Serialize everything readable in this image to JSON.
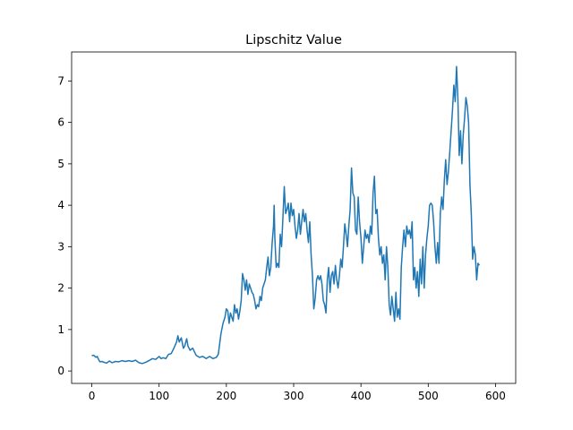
{
  "chart_data": {
    "type": "line",
    "title": "Lipschitz Value",
    "xlabel": "",
    "ylabel": "",
    "xlim": [
      -30,
      630
    ],
    "ylim": [
      -0.3,
      7.7
    ],
    "xticks": [
      0,
      100,
      200,
      300,
      400,
      500,
      600
    ],
    "yticks": [
      0,
      1,
      2,
      3,
      4,
      5,
      6,
      7
    ],
    "grid": false,
    "line_color": "#1f77b4",
    "series": [
      {
        "points": [
          [
            0,
            0.37
          ],
          [
            3,
            0.38
          ],
          [
            6,
            0.33
          ],
          [
            8,
            0.35
          ],
          [
            10,
            0.28
          ],
          [
            12,
            0.22
          ],
          [
            15,
            0.23
          ],
          [
            18,
            0.21
          ],
          [
            22,
            0.19
          ],
          [
            26,
            0.24
          ],
          [
            30,
            0.2
          ],
          [
            35,
            0.23
          ],
          [
            40,
            0.22
          ],
          [
            45,
            0.25
          ],
          [
            50,
            0.23
          ],
          [
            55,
            0.25
          ],
          [
            60,
            0.23
          ],
          [
            65,
            0.26
          ],
          [
            70,
            0.2
          ],
          [
            75,
            0.18
          ],
          [
            80,
            0.21
          ],
          [
            85,
            0.25
          ],
          [
            90,
            0.3
          ],
          [
            95,
            0.28
          ],
          [
            100,
            0.35
          ],
          [
            103,
            0.3
          ],
          [
            106,
            0.32
          ],
          [
            110,
            0.3
          ],
          [
            114,
            0.4
          ],
          [
            118,
            0.42
          ],
          [
            122,
            0.55
          ],
          [
            126,
            0.7
          ],
          [
            128,
            0.85
          ],
          [
            130,
            0.7
          ],
          [
            133,
            0.8
          ],
          [
            136,
            0.55
          ],
          [
            138,
            0.6
          ],
          [
            141,
            0.78
          ],
          [
            143,
            0.6
          ],
          [
            146,
            0.5
          ],
          [
            150,
            0.55
          ],
          [
            155,
            0.38
          ],
          [
            160,
            0.33
          ],
          [
            165,
            0.35
          ],
          [
            170,
            0.3
          ],
          [
            175,
            0.35
          ],
          [
            180,
            0.3
          ],
          [
            185,
            0.33
          ],
          [
            188,
            0.4
          ],
          [
            190,
            0.65
          ],
          [
            192,
            0.9
          ],
          [
            195,
            1.15
          ],
          [
            198,
            1.3
          ],
          [
            200,
            1.5
          ],
          [
            202,
            1.45
          ],
          [
            204,
            1.15
          ],
          [
            206,
            1.4
          ],
          [
            208,
            1.3
          ],
          [
            210,
            1.2
          ],
          [
            212,
            1.6
          ],
          [
            214,
            1.4
          ],
          [
            216,
            1.5
          ],
          [
            218,
            1.25
          ],
          [
            220,
            1.45
          ],
          [
            222,
            1.7
          ],
          [
            224,
            2.35
          ],
          [
            226,
            2.2
          ],
          [
            228,
            1.95
          ],
          [
            230,
            2.2
          ],
          [
            232,
            1.85
          ],
          [
            234,
            2.1
          ],
          [
            236,
            2.0
          ],
          [
            238,
            1.9
          ],
          [
            240,
            1.85
          ],
          [
            242,
            1.7
          ],
          [
            244,
            1.5
          ],
          [
            246,
            1.6
          ],
          [
            248,
            1.55
          ],
          [
            250,
            1.8
          ],
          [
            252,
            1.7
          ],
          [
            254,
            2.0
          ],
          [
            256,
            2.1
          ],
          [
            258,
            2.2
          ],
          [
            260,
            2.5
          ],
          [
            262,
            2.75
          ],
          [
            264,
            2.3
          ],
          [
            266,
            2.5
          ],
          [
            268,
            3.1
          ],
          [
            270,
            3.5
          ],
          [
            271,
            4.0
          ],
          [
            272,
            3.2
          ],
          [
            274,
            2.5
          ],
          [
            276,
            2.6
          ],
          [
            278,
            2.5
          ],
          [
            280,
            3.3
          ],
          [
            282,
            3.0
          ],
          [
            284,
            3.7
          ],
          [
            286,
            4.45
          ],
          [
            288,
            3.8
          ],
          [
            290,
            3.9
          ],
          [
            292,
            4.05
          ],
          [
            294,
            3.6
          ],
          [
            296,
            4.05
          ],
          [
            298,
            3.75
          ],
          [
            300,
            3.9
          ],
          [
            302,
            3.5
          ],
          [
            304,
            3.2
          ],
          [
            306,
            3.4
          ],
          [
            308,
            3.8
          ],
          [
            310,
            3.3
          ],
          [
            312,
            3.6
          ],
          [
            314,
            3.9
          ],
          [
            316,
            3.6
          ],
          [
            318,
            3.8
          ],
          [
            320,
            3.4
          ],
          [
            322,
            3.1
          ],
          [
            324,
            3.6
          ],
          [
            326,
            2.8
          ],
          [
            328,
            2.3
          ],
          [
            330,
            1.5
          ],
          [
            332,
            1.75
          ],
          [
            334,
            2.2
          ],
          [
            336,
            2.3
          ],
          [
            338,
            2.2
          ],
          [
            340,
            2.3
          ],
          [
            342,
            2.1
          ],
          [
            344,
            1.7
          ],
          [
            346,
            1.6
          ],
          [
            348,
            1.4
          ],
          [
            350,
            2.2
          ],
          [
            352,
            2.5
          ],
          [
            354,
            1.9
          ],
          [
            356,
            2.3
          ],
          [
            358,
            2.4
          ],
          [
            360,
            2.1
          ],
          [
            362,
            2.55
          ],
          [
            364,
            2.2
          ],
          [
            366,
            2.0
          ],
          [
            368,
            2.3
          ],
          [
            370,
            2.7
          ],
          [
            372,
            2.5
          ],
          [
            374,
            3.0
          ],
          [
            376,
            3.55
          ],
          [
            378,
            3.3
          ],
          [
            380,
            3.0
          ],
          [
            382,
            3.5
          ],
          [
            384,
            3.9
          ],
          [
            386,
            4.9
          ],
          [
            388,
            4.3
          ],
          [
            390,
            4.2
          ],
          [
            392,
            3.4
          ],
          [
            394,
            3.3
          ],
          [
            396,
            4.2
          ],
          [
            398,
            3.6
          ],
          [
            400,
            3.2
          ],
          [
            402,
            2.6
          ],
          [
            404,
            3.0
          ],
          [
            406,
            3.4
          ],
          [
            408,
            3.2
          ],
          [
            410,
            3.3
          ],
          [
            412,
            3.1
          ],
          [
            414,
            3.5
          ],
          [
            416,
            3.3
          ],
          [
            418,
            4.3
          ],
          [
            420,
            4.7
          ],
          [
            422,
            3.8
          ],
          [
            424,
            3.9
          ],
          [
            426,
            3.2
          ],
          [
            428,
            2.8
          ],
          [
            430,
            3.0
          ],
          [
            432,
            2.6
          ],
          [
            434,
            2.8
          ],
          [
            436,
            2.2
          ],
          [
            438,
            3.0
          ],
          [
            440,
            2.5
          ],
          [
            442,
            1.6
          ],
          [
            444,
            1.35
          ],
          [
            446,
            1.8
          ],
          [
            448,
            1.5
          ],
          [
            450,
            1.2
          ],
          [
            452,
            1.9
          ],
          [
            454,
            1.3
          ],
          [
            456,
            1.5
          ],
          [
            458,
            1.25
          ],
          [
            460,
            2.5
          ],
          [
            462,
            3.0
          ],
          [
            464,
            3.4
          ],
          [
            466,
            3.0
          ],
          [
            468,
            3.5
          ],
          [
            470,
            3.3
          ],
          [
            472,
            3.4
          ],
          [
            474,
            3.2
          ],
          [
            476,
            3.6
          ],
          [
            478,
            2.2
          ],
          [
            480,
            2.5
          ],
          [
            482,
            2.0
          ],
          [
            484,
            2.4
          ],
          [
            486,
            1.8
          ],
          [
            488,
            2.7
          ],
          [
            490,
            2.1
          ],
          [
            492,
            3.0
          ],
          [
            494,
            2.0
          ],
          [
            496,
            2.8
          ],
          [
            498,
            3.2
          ],
          [
            500,
            3.5
          ],
          [
            502,
            4.0
          ],
          [
            504,
            4.05
          ],
          [
            506,
            4.0
          ],
          [
            508,
            3.6
          ],
          [
            510,
            3.0
          ],
          [
            512,
            2.6
          ],
          [
            514,
            3.1
          ],
          [
            516,
            2.6
          ],
          [
            518,
            3.8
          ],
          [
            520,
            4.2
          ],
          [
            522,
            3.9
          ],
          [
            524,
            4.6
          ],
          [
            526,
            5.1
          ],
          [
            528,
            4.5
          ],
          [
            530,
            4.8
          ],
          [
            532,
            5.3
          ],
          [
            534,
            5.8
          ],
          [
            536,
            6.3
          ],
          [
            538,
            6.9
          ],
          [
            540,
            6.5
          ],
          [
            542,
            7.35
          ],
          [
            544,
            6.6
          ],
          [
            546,
            5.2
          ],
          [
            548,
            5.8
          ],
          [
            550,
            5.0
          ],
          [
            552,
            5.7
          ],
          [
            554,
            6.1
          ],
          [
            556,
            6.6
          ],
          [
            558,
            6.4
          ],
          [
            560,
            6.0
          ],
          [
            562,
            4.5
          ],
          [
            564,
            3.8
          ],
          [
            566,
            2.7
          ],
          [
            568,
            3.0
          ],
          [
            570,
            2.8
          ],
          [
            572,
            2.2
          ],
          [
            574,
            2.6
          ],
          [
            576,
            2.55
          ]
        ]
      }
    ]
  }
}
